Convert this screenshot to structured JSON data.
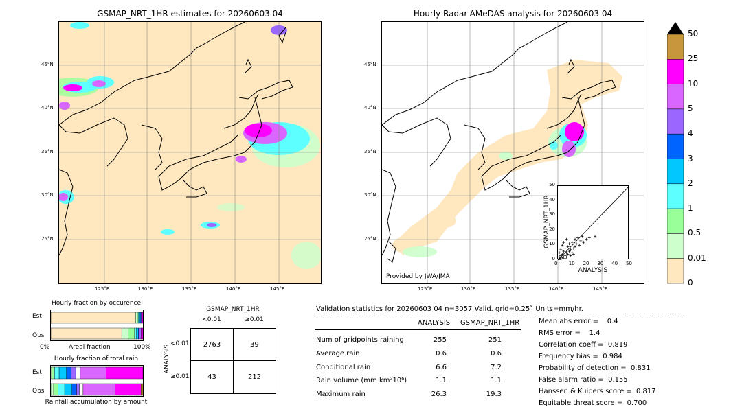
{
  "left_map": {
    "title": "GSMAP_NRT_1HR estimates for 20260603 04",
    "lat_labels": [
      "45°N",
      "40°N",
      "35°N",
      "30°N",
      "25°N"
    ],
    "lon_labels": [
      "125°E",
      "130°E",
      "135°E",
      "140°E",
      "145°E"
    ]
  },
  "right_map": {
    "title": "Hourly Radar-AMeDAS analysis for 20260603 04",
    "lat_labels": [
      "45°N",
      "40°N",
      "35°N",
      "30°N",
      "25°N"
    ],
    "lon_labels": [
      "125°E",
      "130°E",
      "135°E",
      "140°E",
      "145°E"
    ],
    "credit": "Provided by JWA/JMA"
  },
  "colorbar": {
    "labels": [
      "50",
      "25",
      "10",
      "5",
      "4",
      "3",
      "2",
      "1",
      "0.5",
      "0.01",
      "0"
    ],
    "colors": [
      "#c8963c",
      "#ff00ff",
      "#d966ff",
      "#9966ff",
      "#0064ff",
      "#00c8ff",
      "#5dffff",
      "#99ff99",
      "#ccffcc",
      "#ffe8c0"
    ]
  },
  "scatter_inset": {
    "xlabel": "ANALYSIS",
    "ylabel": "GSMAP_NRT_1HR",
    "ticks": [
      "0",
      "10",
      "20",
      "30",
      "40",
      "50"
    ]
  },
  "fraction_occurrence": {
    "title": "Hourly fraction by occurence",
    "row_est": "Est",
    "row_obs": "Obs",
    "axis_left": "0%",
    "axis_mid": "Areal fraction",
    "axis_right": "100%"
  },
  "fraction_total": {
    "title": "Hourly fraction of total rain",
    "row_est": "Est",
    "row_obs": "Obs",
    "axis_label": "Rainfall accumulation by amount"
  },
  "contingency": {
    "title": "GSMAP_NRT_1HR",
    "col_lt": "<0.01",
    "col_ge": "≥0.01",
    "row_axis": "ANALYSIS",
    "row_lt": "<0.01",
    "row_ge": "≥0.01",
    "a": "2763",
    "b": "39",
    "c": "43",
    "d": "212"
  },
  "validation": {
    "header": "Validation statistics for 20260603 04  n=3057 Valid. grid=0.25˚ Units=mm/hr.",
    "col_analysis": "ANALYSIS",
    "col_gsmap": "GSMAP_NRT_1HR",
    "rows": [
      {
        "label": "Num of gridpoints raining",
        "analysis": "255",
        "gsmap": "251"
      },
      {
        "label": "Average rain",
        "analysis": "0.6",
        "gsmap": "0.6"
      },
      {
        "label": "Conditional rain",
        "analysis": "6.6",
        "gsmap": "7.2"
      },
      {
        "label": "Rain volume (mm km²10⁶)",
        "analysis": "1.1",
        "gsmap": "1.1"
      },
      {
        "label": "Maximum rain",
        "analysis": "26.3",
        "gsmap": "19.3"
      }
    ],
    "scores": [
      "Mean abs error =    0.4",
      "RMS error =    1.4",
      "Correlation coeff =  0.819",
      "Frequency bias =  0.984",
      "Probability of detection =  0.831",
      "False alarm ratio =  0.155",
      "Hanssen & Kuipers score =  0.817",
      "Equitable threat score =  0.700"
    ]
  },
  "chart_data": [
    {
      "type": "scatter",
      "title": "",
      "xlabel": "ANALYSIS",
      "ylabel": "GSMAP_NRT_1HR",
      "xlim": [
        0,
        50
      ],
      "ylim": [
        0,
        50
      ],
      "points": [
        [
          0.5,
          0.3
        ],
        [
          1,
          2
        ],
        [
          1.5,
          1
        ],
        [
          2,
          3
        ],
        [
          2,
          0.5
        ],
        [
          3,
          4
        ],
        [
          3,
          1.5
        ],
        [
          4,
          2
        ],
        [
          4,
          6
        ],
        [
          5,
          3
        ],
        [
          5,
          8
        ],
        [
          6,
          5
        ],
        [
          6,
          2
        ],
        [
          7,
          9
        ],
        [
          7,
          4
        ],
        [
          8,
          6
        ],
        [
          8,
          11
        ],
        [
          9,
          7
        ],
        [
          10,
          12
        ],
        [
          10,
          5
        ],
        [
          11,
          8
        ],
        [
          12,
          14
        ],
        [
          12,
          9
        ],
        [
          13,
          11
        ],
        [
          14,
          15
        ],
        [
          15,
          10
        ],
        [
          16,
          13
        ],
        [
          17,
          16
        ],
        [
          18,
          12
        ],
        [
          20,
          14
        ],
        [
          22,
          15
        ],
        [
          26,
          16
        ],
        [
          2,
          7
        ],
        [
          3,
          10
        ],
        [
          1,
          5
        ],
        [
          4,
          12
        ],
        [
          6,
          14
        ],
        [
          5,
          1
        ],
        [
          9,
          3
        ],
        [
          11,
          4
        ]
      ]
    },
    {
      "type": "bar",
      "title": "Hourly fraction by occurence",
      "categories": [
        "Est",
        "Obs"
      ],
      "xlabel": "Areal fraction",
      "series": [
        {
          "values": [
            0.92,
            0.77
          ]
        },
        {
          "values": [
            0.02,
            0.07
          ]
        },
        {
          "values": [
            0.01,
            0.07
          ]
        },
        {
          "values": [
            0.01,
            0.02
          ]
        },
        {
          "values": [
            0.01,
            0.02
          ]
        },
        {
          "values": [
            0.01,
            0.01
          ]
        },
        {
          "values": [
            0.01,
            0.02
          ]
        },
        {
          "values": [
            0.01,
            0.02
          ]
        }
      ]
    },
    {
      "type": "bar",
      "title": "Hourly fraction of total rain",
      "categories": [
        "Est",
        "Obs"
      ],
      "xlabel": "Rainfall accumulation by amount",
      "series": [
        {
          "values": [
            0.0,
            0.0
          ]
        },
        {
          "values": [
            0.01,
            0.03
          ]
        },
        {
          "values": [
            0.03,
            0.05
          ]
        },
        {
          "values": [
            0.05,
            0.07
          ]
        },
        {
          "values": [
            0.08,
            0.08
          ]
        },
        {
          "values": [
            0.05,
            0.05
          ]
        },
        {
          "values": [
            0.05,
            0.03
          ]
        },
        {
          "values": [
            0.05,
            0.04
          ]
        },
        {
          "values": [
            0.28,
            0.35
          ]
        },
        {
          "values": [
            0.4,
            0.28
          ]
        },
        {
          "values": [
            0.0,
            0.02
          ]
        }
      ]
    }
  ]
}
